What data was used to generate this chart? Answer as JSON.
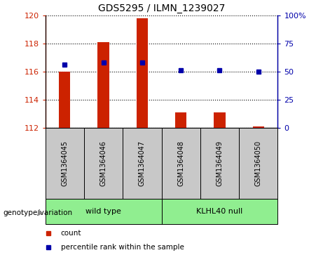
{
  "title": "GDS5295 / ILMN_1239027",
  "samples": [
    "GSM1364045",
    "GSM1364046",
    "GSM1364047",
    "GSM1364048",
    "GSM1364049",
    "GSM1364050"
  ],
  "red_values": [
    116.0,
    118.1,
    119.8,
    113.1,
    113.1,
    112.1
  ],
  "blue_values": [
    116.5,
    116.65,
    116.65,
    116.1,
    116.1,
    116.0
  ],
  "baseline": 112.0,
  "ylim_left": [
    112,
    120
  ],
  "ylim_right": [
    0,
    100
  ],
  "yticks_left": [
    112,
    114,
    116,
    118,
    120
  ],
  "yticks_right": [
    0,
    25,
    50,
    75,
    100
  ],
  "ytick_labels_right": [
    "0",
    "25",
    "50",
    "75",
    "100%"
  ],
  "groups": [
    {
      "label": "wild type",
      "start": 0,
      "end": 3,
      "color": "#90EE90"
    },
    {
      "label": "KLHL40 null",
      "start": 3,
      "end": 6,
      "color": "#90EE90"
    }
  ],
  "group_label_prefix": "genotype/variation",
  "legend_items": [
    {
      "color": "#CC2200",
      "label": "count"
    },
    {
      "color": "#0000AA",
      "label": "percentile rank within the sample"
    }
  ],
  "bar_color": "#CC2200",
  "dot_color": "#0000AA",
  "sample_bg_color": "#C8C8C8",
  "bar_width": 0.3
}
